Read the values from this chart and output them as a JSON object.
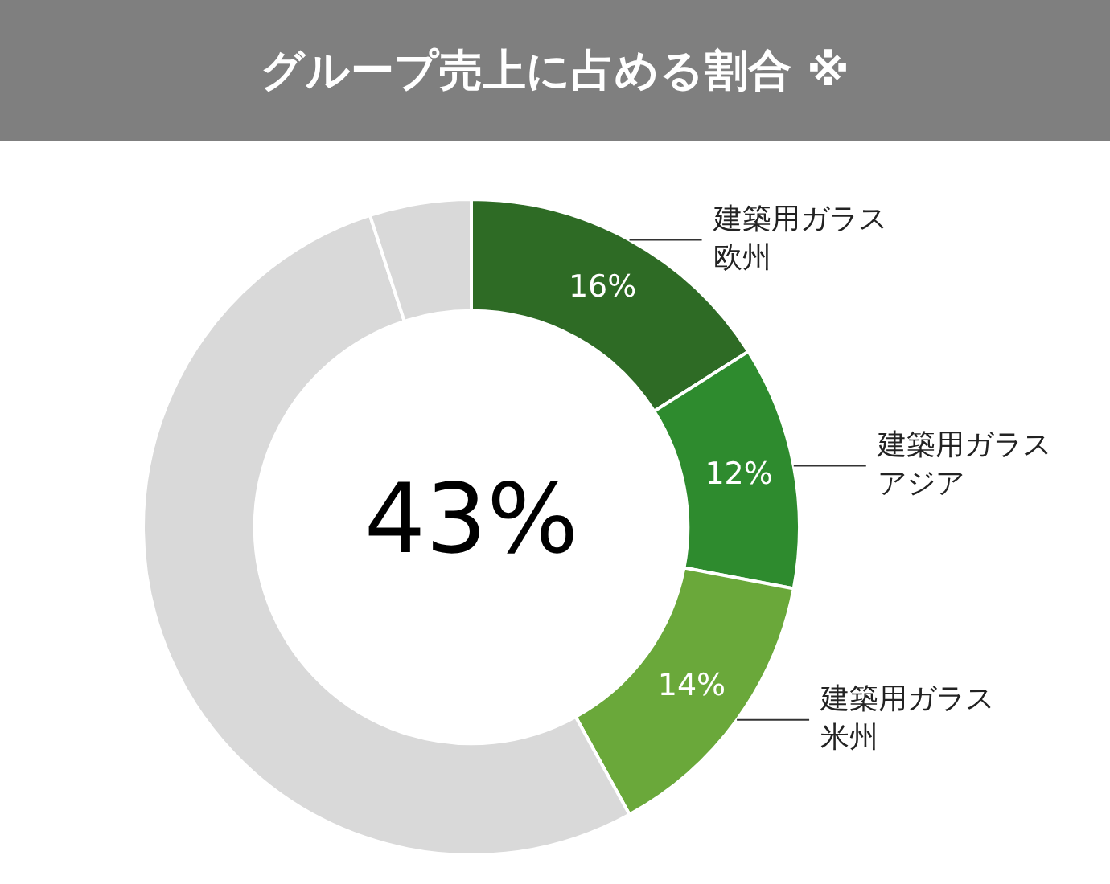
{
  "chart_data": {
    "type": "donut",
    "title": "グループ売上に占める割合 ※",
    "categories": [
      "建築用ガラス欧州",
      "建築用ガラスアジア",
      "建築用ガラス米州",
      null,
      null
    ],
    "values": [
      16,
      12,
      14,
      53,
      5
    ],
    "colors": [
      "#2e6b25",
      "#2e8b2e",
      "#6aa83a",
      "#d9d9d9",
      "#d9d9d9"
    ],
    "value_labels": [
      "16%",
      "12%",
      "14%",
      null,
      null
    ],
    "annotations": [
      "43%"
    ],
    "legend": false
  }
}
